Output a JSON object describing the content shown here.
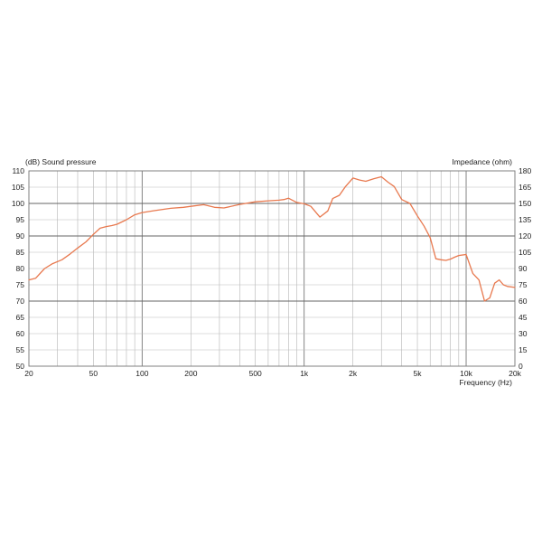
{
  "chart_data": {
    "type": "line",
    "y_left_label": "(dB)  Sound pressure",
    "y_right_label": "Impedance  (ohm)",
    "x_label": "Frequency  (Hz)",
    "x_scale": "log",
    "xlim": [
      20,
      20000
    ],
    "ylim_left": [
      50,
      110
    ],
    "ylim_right": [
      0,
      180
    ],
    "grid": true,
    "major_lines_y": [
      70,
      90,
      100
    ],
    "x_ticks": [
      {
        "value": 20,
        "label": "20"
      },
      {
        "value": 50,
        "label": "50"
      },
      {
        "value": 100,
        "label": "100"
      },
      {
        "value": 200,
        "label": "200"
      },
      {
        "value": 500,
        "label": "500"
      },
      {
        "value": 1000,
        "label": "1k"
      },
      {
        "value": 2000,
        "label": "2k"
      },
      {
        "value": 5000,
        "label": "5k"
      },
      {
        "value": 10000,
        "label": "10k"
      },
      {
        "value": 20000,
        "label": "20k"
      }
    ],
    "y_left_ticks": [
      110,
      105,
      100,
      95,
      90,
      85,
      80,
      75,
      70,
      65,
      60,
      55,
      50
    ],
    "y_right_ticks": [
      180,
      165,
      150,
      135,
      120,
      105,
      90,
      75,
      60,
      45,
      30,
      15,
      0
    ],
    "series": [
      {
        "color": "#e8794f",
        "x": [
          20,
          22,
          25,
          28,
          32,
          36,
          40,
          45,
          50,
          55,
          60,
          65,
          70,
          80,
          90,
          100,
          120,
          150,
          180,
          200,
          240,
          280,
          320,
          400,
          500,
          600,
          700,
          750,
          800,
          900,
          1000,
          1100,
          1250,
          1400,
          1500,
          1650,
          1800,
          2000,
          2200,
          2400,
          2700,
          3000,
          3300,
          3600,
          4000,
          4500,
          5000,
          5500,
          6000,
          6500,
          7000,
          7500,
          8000,
          8500,
          9000,
          10000,
          11000,
          12000,
          13000,
          14000,
          15000,
          16000,
          17000,
          18000,
          20000
        ],
        "y": [
          76.5,
          77,
          80,
          81.5,
          82.7,
          84.5,
          86.3,
          88.2,
          90.5,
          92.4,
          92.9,
          93.2,
          93.6,
          95,
          96.5,
          97.2,
          97.8,
          98.5,
          98.8,
          99.1,
          99.6,
          98.8,
          98.6,
          99.7,
          100.5,
          100.8,
          101,
          101.2,
          101.6,
          100.3,
          99.9,
          99.1,
          95.8,
          97.7,
          101.5,
          102.5,
          105.2,
          107.8,
          107.2,
          106.8,
          107.6,
          108.2,
          106.5,
          105.2,
          101.2,
          100,
          96.2,
          93,
          89.5,
          83,
          82.7,
          82.5,
          82.9,
          83.5,
          84,
          84.3,
          78.5,
          76.5,
          70,
          71,
          75.5,
          76.5,
          75,
          74.5,
          74.2
        ]
      }
    ]
  }
}
